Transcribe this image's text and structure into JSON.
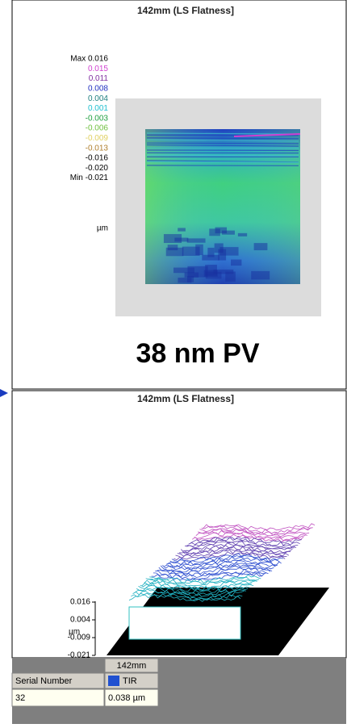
{
  "top_panel": {
    "title": "142mm (LS Flatness]",
    "legend": [
      {
        "label": "Max 0.016",
        "color": "#000000"
      },
      {
        "label": "0.015",
        "color": "#d040d0"
      },
      {
        "label": "0.011",
        "color": "#8030a0"
      },
      {
        "label": "0.008",
        "color": "#2030c0"
      },
      {
        "label": "0.004",
        "color": "#208080"
      },
      {
        "label": "0.001",
        "color": "#20c0d0"
      },
      {
        "label": "-0.003",
        "color": "#20a040"
      },
      {
        "label": "-0.006",
        "color": "#70c040"
      },
      {
        "label": "-0.009",
        "color": "#e0d060"
      },
      {
        "label": "-0.013",
        "color": "#b08030"
      },
      {
        "label": "-0.016",
        "color": "#000000"
      },
      {
        "label": "-0.020",
        "color": "#000000"
      },
      {
        "label": "Min -0.021",
        "color": "#000000"
      }
    ],
    "unit": "µm",
    "result": "38 nm PV"
  },
  "bottom_panel": {
    "title": "142mm (LS Flatness]",
    "axis_labels": [
      "0.016",
      "0.004",
      "-0.009",
      "-0.021"
    ],
    "unit": "µm"
  },
  "table": {
    "column_header": "142mm",
    "row_header": "Serial Number",
    "measure": "TIR",
    "serial": "32",
    "value": "0.038 µm"
  }
}
